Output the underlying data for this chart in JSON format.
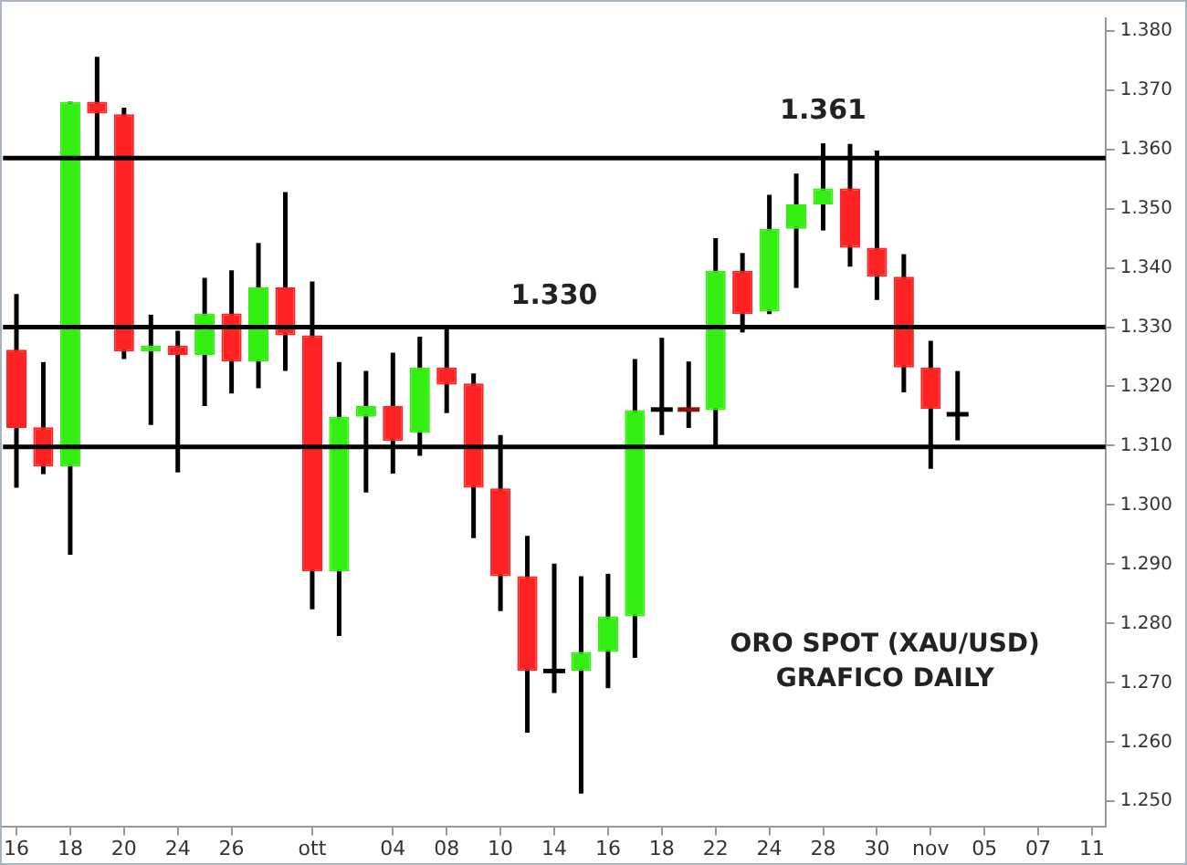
{
  "chart_data": {
    "type": "candlestick",
    "categories": [
      "16",
      null,
      "18",
      null,
      "20",
      null,
      "24",
      null,
      "26",
      null,
      null,
      "ott",
      null,
      null,
      "04",
      null,
      "08",
      null,
      "10",
      null,
      "14",
      null,
      "16",
      null,
      "18",
      null,
      "22",
      null,
      "24",
      null,
      "28",
      null,
      "30",
      null,
      "nov",
      null,
      "05",
      null,
      "07",
      null,
      "11"
    ],
    "ohlc": [
      [
        1.3262,
        1.3356,
        1.3029,
        1.313
      ],
      [
        1.3131,
        1.3241,
        1.3052,
        1.3065
      ],
      [
        1.3065,
        1.368,
        1.2916,
        1.368
      ],
      [
        1.368,
        1.3756,
        1.3587,
        1.366
      ],
      [
        1.3659,
        1.367,
        1.3246,
        1.3259
      ],
      [
        1.3259,
        1.3321,
        1.3135,
        1.3269
      ],
      [
        1.3269,
        1.3294,
        1.3055,
        1.3253
      ],
      [
        1.3253,
        1.3383,
        1.3167,
        1.3323
      ],
      [
        1.3323,
        1.3396,
        1.3188,
        1.3242
      ],
      [
        1.3242,
        1.3442,
        1.3197,
        1.3367
      ],
      [
        1.3367,
        1.3528,
        1.3226,
        1.3286
      ],
      [
        1.3286,
        1.3377,
        1.2824,
        1.2888
      ],
      [
        1.2888,
        1.3241,
        1.2779,
        1.3149
      ],
      [
        1.3149,
        1.3226,
        1.3021,
        1.3167
      ],
      [
        1.3167,
        1.3257,
        1.3053,
        1.3108
      ],
      [
        1.3122,
        1.3284,
        1.3083,
        1.3232
      ],
      [
        1.3232,
        1.3302,
        1.3155,
        1.3203
      ],
      [
        1.3205,
        1.3222,
        1.2944,
        1.3029
      ],
      [
        1.3028,
        1.3118,
        1.2821,
        1.288
      ],
      [
        1.288,
        1.2948,
        1.2616,
        1.272
      ],
      [
        1.272,
        1.2901,
        1.2683,
        1.272
      ],
      [
        1.272,
        1.288,
        1.2513,
        1.2752
      ],
      [
        1.2752,
        1.2884,
        1.2691,
        1.2812
      ],
      [
        1.2812,
        1.3246,
        1.2742,
        1.316
      ],
      [
        1.3161,
        1.3282,
        1.3118,
        1.3161
      ],
      [
        1.3161,
        1.3242,
        1.313,
        1.3161
      ],
      [
        1.316,
        1.345,
        1.31,
        1.3395
      ],
      [
        1.3395,
        1.3425,
        1.3291,
        1.3322
      ],
      [
        1.3326,
        1.3523,
        1.3322,
        1.3466
      ],
      [
        1.3466,
        1.3559,
        1.3366,
        1.3507
      ],
      [
        1.3507,
        1.361,
        1.3463,
        1.3534
      ],
      [
        1.3534,
        1.3609,
        1.3402,
        1.3434
      ],
      [
        1.3434,
        1.3598,
        1.3346,
        1.3385
      ],
      [
        1.3385,
        1.3423,
        1.319,
        1.3232
      ],
      [
        1.3232,
        1.3277,
        1.3061,
        1.3162
      ],
      [
        1.3153,
        1.3226,
        1.3109,
        1.3153
      ],
      null,
      null,
      null,
      null,
      null
    ],
    "colors": [
      "#ff2222",
      "#ff2222",
      "#33ee11",
      "#ff2222",
      "#ff2222",
      "#33ee11",
      "#ff2222",
      "#33ee11",
      "#ff2222",
      "#33ee11",
      "#ff2222",
      "#ff2222",
      "#33ee11",
      "#33ee11",
      "#ff2222",
      "#33ee11",
      "#ff2222",
      "#ff2222",
      "#ff2222",
      "#ff2222",
      "#000000",
      "#33ee11",
      "#33ee11",
      "#33ee11",
      "#000000",
      "#8b1010",
      "#33ee11",
      "#ff2222",
      "#33ee11",
      "#33ee11",
      "#33ee11",
      "#ff2222",
      "#ff2222",
      "#ff2222",
      "#ff2222",
      "#000000",
      null,
      null,
      null,
      null,
      null
    ],
    "ylim": [
      1.2458,
      1.3821
    ],
    "yticks": [
      {
        "value": 1.25,
        "label": "1.250"
      },
      {
        "value": 1.26,
        "label": "1.260"
      },
      {
        "value": 1.27,
        "label": "1.270"
      },
      {
        "value": 1.28,
        "label": "1.280"
      },
      {
        "value": 1.29,
        "label": "1.290"
      },
      {
        "value": 1.3,
        "label": "1.300"
      },
      {
        "value": 1.31,
        "label": "1.310"
      },
      {
        "value": 1.32,
        "label": "1.320"
      },
      {
        "value": 1.33,
        "label": "1.330"
      },
      {
        "value": 1.34,
        "label": "1.340"
      },
      {
        "value": 1.35,
        "label": "1.350"
      },
      {
        "value": 1.36,
        "label": "1.360"
      },
      {
        "value": 1.37,
        "label": "1.370"
      },
      {
        "value": 1.38,
        "label": "1.380"
      }
    ],
    "ref_lines": [
      {
        "axis": "y",
        "value": 1.3585,
        "color": "#000000"
      },
      {
        "axis": "y",
        "value": 1.33,
        "label": "1.330",
        "color": "#000000"
      },
      {
        "axis": "y",
        "value": 1.3098,
        "color": "#000000"
      }
    ],
    "annotations": [
      {
        "text": "1.361",
        "x": "28",
        "y": 1.361
      },
      "ORO SPOT (XAU/USD)",
      "GRAFICO DAILY"
    ],
    "grid": false,
    "legend": false
  }
}
